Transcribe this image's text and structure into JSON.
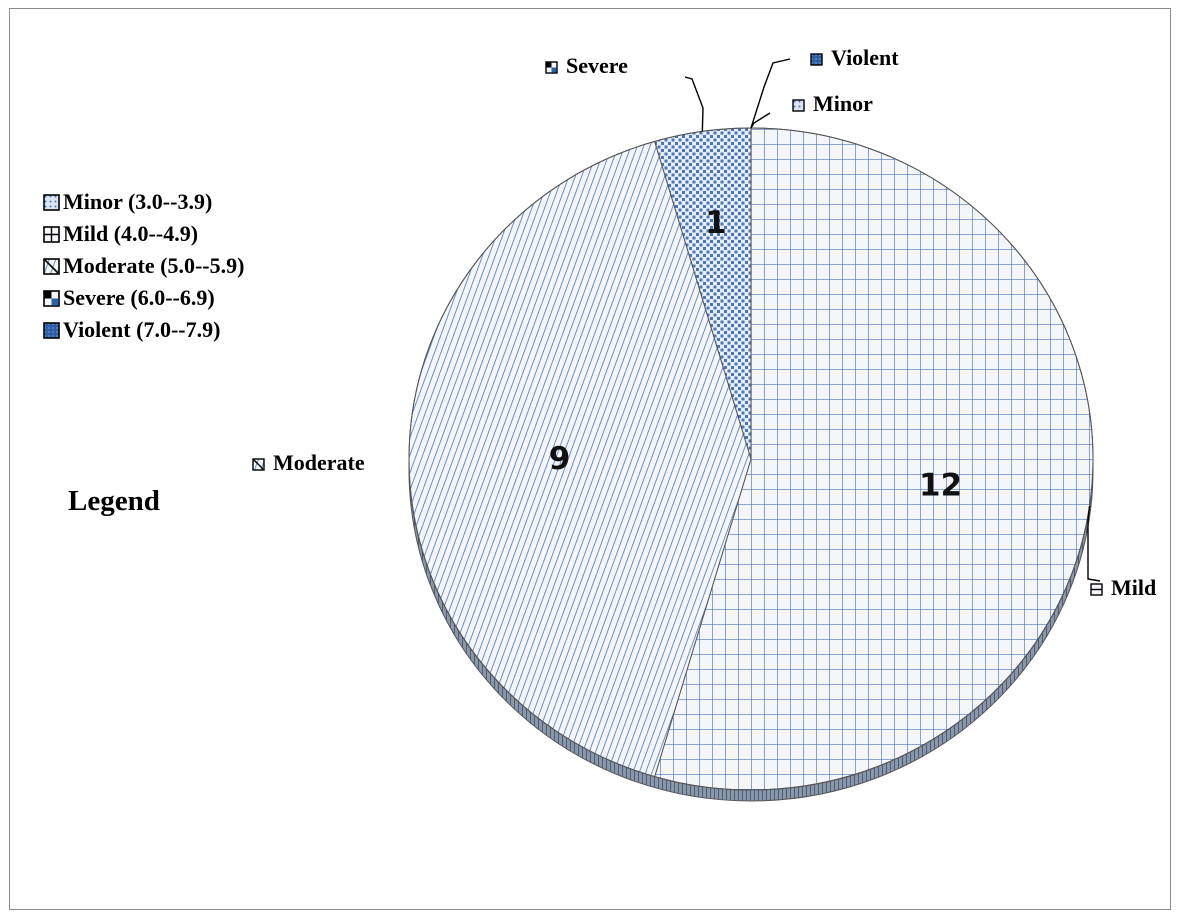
{
  "chart_data": {
    "type": "pie",
    "title": "",
    "categories": [
      "Minor",
      "Mild",
      "Moderate",
      "Severe",
      "Violent"
    ],
    "values": [
      0,
      12,
      9,
      1,
      0
    ],
    "data_labels": [
      "",
      "12",
      "9",
      "1",
      ""
    ],
    "legend_title": "Legend",
    "legend_entries": [
      "Minor (3.0--3.9)",
      "Mild (4.0--4.9)",
      "Moderate (5.0--5.9)",
      "Severe (6.0--6.9)",
      "Violent (7.0--7.9)"
    ],
    "legend_placement": "left",
    "style": "3d-hatched",
    "colors": {
      "hatch": "#4a76b8",
      "hatch_dark": "#1f3f7a",
      "edge": "#555555",
      "background": "#f4f6fa"
    }
  }
}
